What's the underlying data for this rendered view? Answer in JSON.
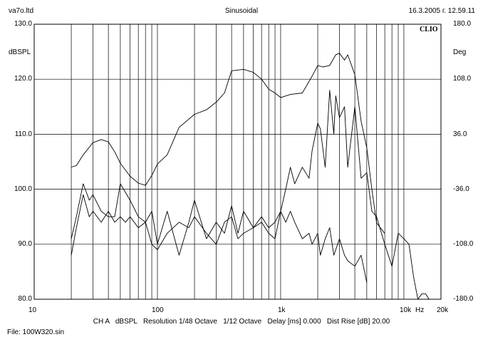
{
  "header": {
    "left": "va7o.ltd",
    "center": "Sinusoidal",
    "right": "16.3.2005 г. 12.59.11"
  },
  "brand": "CLIO",
  "axes": {
    "left_unit": "dBSPL",
    "right_unit": "Deg",
    "x_unit": "Hz",
    "left_ticks": [
      "130.0",
      "120.0",
      "110.0",
      "100.0",
      "90.0",
      "80.0"
    ],
    "right_ticks": [
      "180.0",
      "108.0",
      "36.0",
      "-36.0",
      "-108.0",
      "-180.0"
    ],
    "x_ticks": [
      "10",
      "100",
      "1k",
      "10k",
      "20k"
    ]
  },
  "settings_line": "CH A   dBSPL   Resolution 1/48 Octave   1/12 Octave   Delay [ms] 0.000   Dist Rise [dB] 20.00",
  "footer": "File: 100W320.sin",
  "colors": {
    "trace": "#000000",
    "grid": "#000000",
    "background": "#ffffff"
  },
  "chart_data": {
    "type": "line",
    "title": "Sinusoidal",
    "xlabel": "Hz",
    "ylabel": "dBSPL",
    "y2label": "Deg",
    "xscale": "log",
    "xlim": [
      10,
      20000
    ],
    "ylim": [
      80,
      130
    ],
    "y2lim": [
      -180,
      180
    ],
    "grid": true,
    "series": [
      {
        "axis": "left",
        "x": [
          20,
          22,
          25,
          28,
          30,
          35,
          40,
          45,
          50,
          55,
          60,
          70,
          80,
          90,
          100,
          120,
          150,
          180,
          200,
          250,
          300,
          350,
          400,
          450,
          500,
          600,
          700,
          800,
          900,
          1000,
          1100,
          1200,
          1300,
          1500,
          1700,
          1800,
          2000,
          2100,
          2300,
          2500,
          2700,
          2800,
          3000,
          3300,
          3500,
          4000,
          4500,
          5000,
          5500,
          6000,
          7000,
          8000,
          9000,
          10000,
          11000,
          12000,
          13000,
          14000,
          15000,
          16000
        ],
        "y": [
          88,
          93,
          99,
          95,
          96,
          94,
          96,
          94,
          95,
          94,
          95,
          93,
          94,
          90,
          89,
          92,
          94,
          93,
          95,
          92,
          90,
          94,
          95,
          91,
          92,
          93,
          95,
          93,
          94,
          96,
          100,
          104,
          101,
          104,
          102,
          107,
          112,
          111,
          104,
          118,
          110,
          117,
          113,
          115,
          104,
          115,
          102,
          103,
          96,
          95,
          90,
          86,
          92,
          91,
          90,
          84,
          80,
          81,
          81,
          80
        ]
      },
      {
        "axis": "left",
        "x": [
          20,
          22,
          25,
          28,
          30,
          35,
          40,
          45,
          50,
          60,
          70,
          80,
          90,
          100,
          120,
          150,
          180,
          200,
          250,
          300,
          350,
          400,
          450,
          500,
          600,
          700,
          800,
          900,
          1000,
          1100,
          1200,
          1300,
          1500,
          1700,
          1800,
          2000,
          2100,
          2300,
          2500,
          2700,
          2800,
          3000,
          3300,
          3500,
          4000,
          4500,
          5000
        ],
        "y": [
          91,
          95,
          101,
          98,
          99,
          96,
          95,
          95,
          101,
          98,
          95,
          94,
          96,
          90,
          96,
          88,
          94,
          98,
          91,
          94,
          92,
          97,
          92,
          96,
          93,
          94,
          92,
          91,
          96,
          94,
          96,
          94,
          91,
          92,
          90,
          92,
          88,
          91,
          93,
          88,
          89,
          91,
          88,
          87,
          86,
          88,
          83
        ]
      },
      {
        "axis": "right",
        "x": [
          20,
          22,
          25,
          30,
          35,
          40,
          45,
          50,
          60,
          70,
          80,
          90,
          100,
          120,
          150,
          200,
          250,
          300,
          350,
          400,
          500,
          600,
          700,
          800,
          900,
          1000,
          1200,
          1500,
          1800,
          2000,
          2200,
          2500,
          2800,
          3000,
          3300,
          3500,
          4000,
          4500,
          5000,
          5500,
          6000,
          7000
        ],
        "y": [
          -7,
          -5,
          9,
          25,
          29,
          26,
          13,
          -2,
          -19,
          -28,
          -31,
          -18,
          -3,
          9,
          45,
          62,
          68,
          78,
          90,
          119,
          121,
          117,
          108,
          95,
          90,
          84,
          88,
          90,
          112,
          126,
          124,
          126,
          140,
          142,
          133,
          140,
          114,
          53,
          18,
          -36,
          -80,
          -94
        ]
      }
    ]
  }
}
